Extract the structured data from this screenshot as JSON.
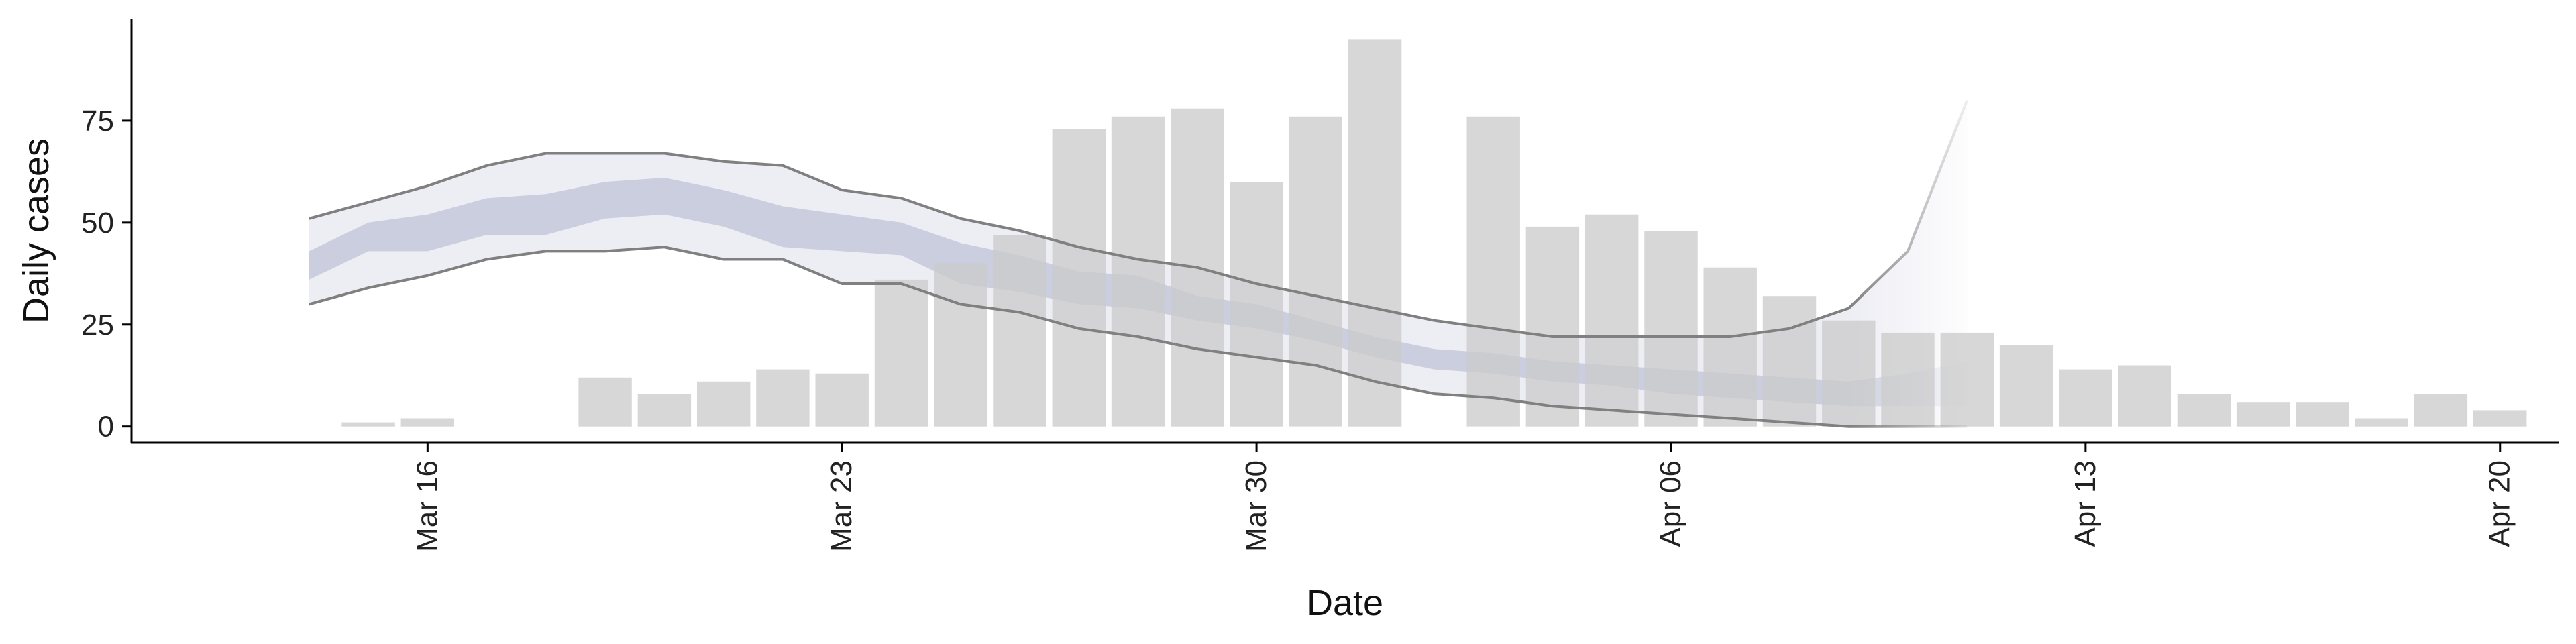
{
  "chart_data": {
    "type": "bar",
    "xlabel": "Date",
    "ylabel": "Daily cases",
    "x_range": [
      "2020-03-11",
      "2020-04-21"
    ],
    "ylim": [
      -4,
      100
    ],
    "y_ticks": [
      0,
      25,
      50,
      75
    ],
    "y_tick_labels": [
      "0",
      "25",
      "50",
      "75"
    ],
    "x_ticks": [
      "2020-03-16",
      "2020-03-23",
      "2020-03-30",
      "2020-04-06",
      "2020-04-13",
      "2020-04-20"
    ],
    "x_tick_labels": [
      "Mar 16",
      "Mar 23",
      "Mar 30",
      "Apr 06",
      "Apr 13",
      "Apr 20"
    ],
    "grid": false,
    "legend": "none",
    "colors": {
      "bars": "#cccccc",
      "outer_band": "#e8e9f1",
      "inner_band": "#c4c9db",
      "outer_line": "#808080"
    },
    "bars": {
      "dates": [
        "2020-03-15",
        "2020-03-16",
        "2020-03-17",
        "2020-03-18",
        "2020-03-19",
        "2020-03-20",
        "2020-03-21",
        "2020-03-22",
        "2020-03-23",
        "2020-03-24",
        "2020-03-25",
        "2020-03-26",
        "2020-03-27",
        "2020-03-28",
        "2020-03-29",
        "2020-03-30",
        "2020-03-31",
        "2020-04-01",
        "2020-04-02",
        "2020-04-03",
        "2020-04-04",
        "2020-04-05",
        "2020-04-06",
        "2020-04-07",
        "2020-04-08",
        "2020-04-09",
        "2020-04-10",
        "2020-04-11",
        "2020-04-12",
        "2020-04-13",
        "2020-04-14",
        "2020-04-15",
        "2020-04-16",
        "2020-04-17",
        "2020-04-18",
        "2020-04-19",
        "2020-04-20"
      ],
      "values": [
        1,
        2,
        0,
        0,
        12,
        8,
        11,
        14,
        13,
        36,
        40,
        47,
        73,
        76,
        78,
        60,
        76,
        95,
        0,
        76,
        49,
        52,
        48,
        39,
        32,
        26,
        23,
        23,
        20,
        14,
        15,
        8,
        6,
        6,
        2,
        8,
        4
      ]
    },
    "estimate": {
      "dates": [
        "2020-03-14",
        "2020-03-15",
        "2020-03-16",
        "2020-03-17",
        "2020-03-18",
        "2020-03-19",
        "2020-03-20",
        "2020-03-21",
        "2020-03-22",
        "2020-03-23",
        "2020-03-24",
        "2020-03-25",
        "2020-03-26",
        "2020-03-27",
        "2020-03-28",
        "2020-03-29",
        "2020-03-30",
        "2020-03-31",
        "2020-04-01",
        "2020-04-02",
        "2020-04-03",
        "2020-04-04",
        "2020-04-05",
        "2020-04-06",
        "2020-04-07",
        "2020-04-08",
        "2020-04-09",
        "2020-04-10",
        "2020-04-11"
      ],
      "outer_upper": [
        51,
        55,
        59,
        64,
        67,
        67,
        67,
        65,
        64,
        58,
        56,
        51,
        48,
        44,
        41,
        39,
        35,
        32,
        29,
        26,
        24,
        22,
        22,
        22,
        22,
        24,
        29,
        43,
        80
      ],
      "inner_upper": [
        43,
        50,
        52,
        56,
        57,
        60,
        61,
        58,
        54,
        52,
        50,
        45,
        42,
        38,
        37,
        32,
        30,
        26,
        22,
        19,
        18,
        16,
        15,
        14,
        13,
        12,
        11,
        13,
        16
      ],
      "inner_lower": [
        36,
        43,
        43,
        47,
        47,
        51,
        52,
        49,
        44,
        43,
        42,
        35,
        33,
        30,
        29,
        26,
        24,
        21,
        17,
        14,
        13,
        11,
        10,
        8,
        7,
        6,
        5,
        5,
        5
      ],
      "outer_lower": [
        30,
        34,
        37,
        41,
        43,
        43,
        44,
        41,
        41,
        35,
        35,
        30,
        28,
        24,
        22,
        19,
        17,
        15,
        11,
        8,
        7,
        5,
        4,
        3,
        2,
        1,
        0,
        0,
        0
      ],
      "forecast_from": "2020-04-09"
    }
  }
}
